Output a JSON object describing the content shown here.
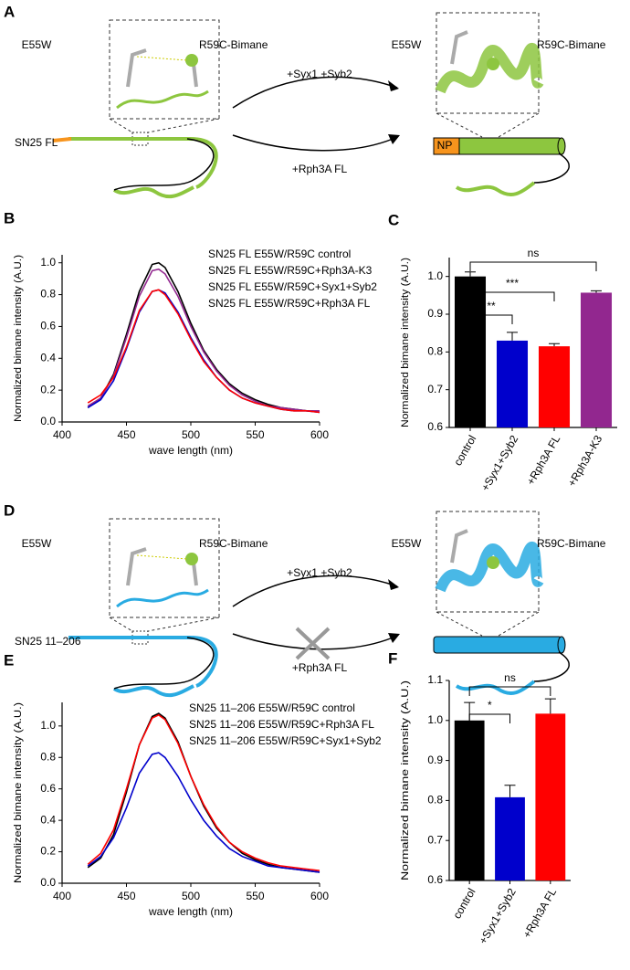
{
  "diagrams": [
    {
      "panel": "A",
      "labels": [
        "E55W",
        "R59C-Bimane",
        "+Syx1 +Syb2",
        "+Rph3A FL",
        "SN25 FL",
        "E55W",
        "R59C-Bimane",
        "NP"
      ],
      "color": "#8dc63f"
    },
    {
      "panel": "D",
      "labels": [
        "E55W",
        "R59C-Bimane",
        "+Syx1 +Syb2",
        "+Rph3A FL",
        "SN25 11–206",
        "E55W",
        "R59C-Bimane"
      ],
      "color": "#29abe2"
    }
  ],
  "chart_data": [
    {
      "type": "line",
      "panel": "B",
      "xlabel": "wave length (nm)",
      "ylabel": "Normalized bimane intensity (A.U.)",
      "x": [
        420,
        430,
        440,
        450,
        460,
        470,
        475,
        480,
        490,
        500,
        510,
        520,
        530,
        540,
        550,
        560,
        570,
        580,
        590,
        600
      ],
      "series": [
        {
          "name": "SN25 FL E55W/R59C control",
          "color": "#000000",
          "values": [
            0.09,
            0.15,
            0.3,
            0.55,
            0.82,
            0.99,
            1.0,
            0.97,
            0.82,
            0.62,
            0.45,
            0.33,
            0.24,
            0.18,
            0.14,
            0.11,
            0.09,
            0.08,
            0.07,
            0.07
          ]
        },
        {
          "name": "SN25 FL E55W/R59C+Rph3A-K3",
          "color": "#92278f",
          "values": [
            0.1,
            0.15,
            0.29,
            0.53,
            0.79,
            0.95,
            0.96,
            0.93,
            0.79,
            0.6,
            0.44,
            0.32,
            0.23,
            0.17,
            0.13,
            0.1,
            0.09,
            0.08,
            0.07,
            0.07
          ]
        },
        {
          "name": "SN25 FL E55W/R59C+Syx1+Syb2",
          "color": "#0000cc",
          "values": [
            0.09,
            0.14,
            0.26,
            0.46,
            0.69,
            0.82,
            0.83,
            0.81,
            0.69,
            0.53,
            0.39,
            0.28,
            0.2,
            0.15,
            0.12,
            0.1,
            0.08,
            0.07,
            0.07,
            0.06
          ]
        },
        {
          "name": "SN25 FL E55W/R59C+Rph3A FL",
          "color": "#ff0000",
          "values": [
            0.12,
            0.17,
            0.28,
            0.47,
            0.7,
            0.82,
            0.83,
            0.8,
            0.68,
            0.52,
            0.38,
            0.28,
            0.2,
            0.15,
            0.12,
            0.1,
            0.08,
            0.07,
            0.07,
            0.06
          ]
        }
      ],
      "xlim": [
        400,
        600
      ],
      "xticks": [
        400,
        450,
        500,
        550,
        600
      ],
      "ylim": [
        0,
        1.05
      ],
      "yticks": [
        {
          "value": 0,
          "label": "0.0"
        },
        0.2,
        0.4,
        0.6,
        0.8,
        {
          "value": 1,
          "label": "1.0"
        }
      ]
    },
    {
      "type": "bar",
      "panel": "C",
      "ylabel": "Normalized bimane intensity (A.U.)",
      "categories": [
        "control",
        "+Syx1+Syb2",
        "+Rph3A FL",
        "+Rph3A-K3"
      ],
      "values": [
        1.0,
        0.83,
        0.815,
        0.957
      ],
      "errors": [
        0.012,
        0.022,
        0.007,
        0.005
      ],
      "colors": [
        "#000000",
        "#0000cc",
        "#ff0000",
        "#92278f"
      ],
      "significance": [
        "**",
        "***",
        "ns"
      ],
      "ylim": [
        0.6,
        1.05
      ],
      "yticks": [
        0.6,
        0.7,
        0.8,
        0.9,
        {
          "value": 1,
          "label": "1.0"
        }
      ]
    },
    {
      "type": "line",
      "panel": "E",
      "xlabel": "wave length (nm)",
      "ylabel": "Normalized bimane intensity (A.U.)",
      "x": [
        420,
        430,
        440,
        450,
        460,
        470,
        475,
        480,
        490,
        500,
        510,
        520,
        530,
        540,
        550,
        560,
        570,
        580,
        590,
        600
      ],
      "series": [
        {
          "name": "SN25 11–206 E55W/R59C control",
          "color": "#000000",
          "values": [
            0.1,
            0.16,
            0.31,
            0.58,
            0.88,
            1.06,
            1.08,
            1.05,
            0.9,
            0.68,
            0.49,
            0.35,
            0.26,
            0.19,
            0.15,
            0.12,
            0.1,
            0.09,
            0.08,
            0.07
          ]
        },
        {
          "name": "SN25 11–206 E55W/R59C+Rph3A FL",
          "color": "#ff0000",
          "values": [
            0.12,
            0.19,
            0.34,
            0.6,
            0.88,
            1.05,
            1.07,
            1.04,
            0.89,
            0.68,
            0.5,
            0.36,
            0.26,
            0.2,
            0.16,
            0.13,
            0.11,
            0.1,
            0.09,
            0.08
          ]
        },
        {
          "name": "SN25 11–206 E55W/R59C+Syx1+Syb2",
          "color": "#0000cc",
          "values": [
            0.11,
            0.17,
            0.29,
            0.48,
            0.7,
            0.82,
            0.83,
            0.8,
            0.68,
            0.53,
            0.4,
            0.3,
            0.22,
            0.17,
            0.14,
            0.11,
            0.1,
            0.09,
            0.08,
            0.07
          ]
        }
      ],
      "xlim": [
        400,
        600
      ],
      "xticks": [
        400,
        450,
        500,
        550,
        600
      ],
      "ylim": [
        0,
        1.15
      ],
      "yticks": [
        {
          "value": 0,
          "label": "0.0"
        },
        0.2,
        0.4,
        0.6,
        0.8,
        {
          "value": 1,
          "label": "1.0"
        }
      ]
    },
    {
      "type": "bar",
      "panel": "F",
      "ylabel": "Normalized bimane intensity (A.U.)",
      "categories": [
        "control",
        "+Syx1+Syb2",
        "+Rph3A FL"
      ],
      "values": [
        1.0,
        0.808,
        1.017
      ],
      "errors": [
        0.045,
        0.03,
        0.037
      ],
      "colors": [
        "#000000",
        "#0000cc",
        "#ff0000"
      ],
      "significance": [
        "*",
        "ns"
      ],
      "ylim": [
        0.6,
        1.1
      ],
      "yticks": [
        0.6,
        0.7,
        0.8,
        0.9,
        {
          "value": 1,
          "label": "1.0"
        },
        1.1
      ]
    }
  ]
}
